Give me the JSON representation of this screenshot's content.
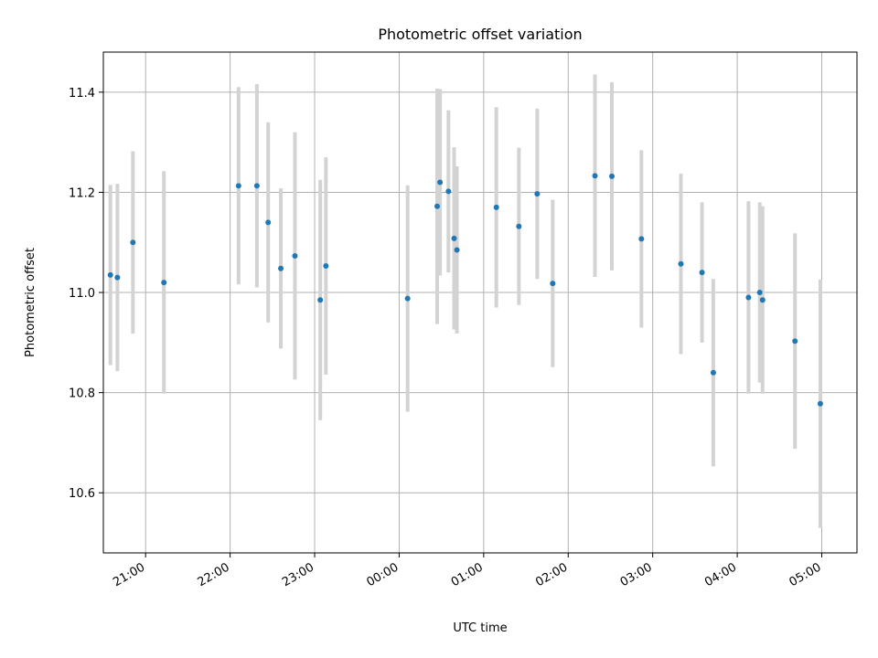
{
  "chart_data": {
    "type": "scatter",
    "title": "Photometric offset variation",
    "xlabel": "UTC time",
    "ylabel": "Photometric offset",
    "x_axis_type": "time",
    "x_tick_labels": [
      "21:00",
      "22:00",
      "23:00",
      "00:00",
      "01:00",
      "02:00",
      "03:00",
      "04:00",
      "05:00"
    ],
    "y_ticks": [
      "10.6",
      "10.8",
      "11.0",
      "11.2",
      "11.4"
    ],
    "ylim": [
      10.48,
      11.48
    ],
    "xlim": [
      "20:30",
      "05:25"
    ],
    "grid": true,
    "series": [
      {
        "color": "#1f77b4",
        "errorbar_color": "#d3d3d3",
        "points": [
          {
            "x": "20:35",
            "y": 11.035,
            "yerr": 0.18
          },
          {
            "x": "20:40",
            "y": 11.03,
            "yerr": 0.187
          },
          {
            "x": "20:51",
            "y": 11.1,
            "yerr": 0.182
          },
          {
            "x": "21:13",
            "y": 11.02,
            "yerr": 0.222
          },
          {
            "x": "22:06",
            "y": 11.213,
            "yerr": 0.197
          },
          {
            "x": "22:19",
            "y": 11.213,
            "yerr": 0.203
          },
          {
            "x": "22:27",
            "y": 11.14,
            "yerr": 0.2
          },
          {
            "x": "22:36",
            "y": 11.048,
            "yerr": 0.16
          },
          {
            "x": "22:46",
            "y": 11.073,
            "yerr": 0.247
          },
          {
            "x": "23:04",
            "y": 10.985,
            "yerr": 0.24
          },
          {
            "x": "23:08",
            "y": 11.053,
            "yerr": 0.217
          },
          {
            "x": "00:06",
            "y": 10.988,
            "yerr": 0.226
          },
          {
            "x": "00:27",
            "y": 11.172,
            "yerr": 0.235
          },
          {
            "x": "00:29",
            "y": 11.22,
            "yerr": 0.186
          },
          {
            "x": "00:35",
            "y": 11.202,
            "yerr": 0.162
          },
          {
            "x": "00:39",
            "y": 11.108,
            "yerr": 0.182
          },
          {
            "x": "00:41",
            "y": 11.085,
            "yerr": 0.167
          },
          {
            "x": "01:09",
            "y": 11.17,
            "yerr": 0.2
          },
          {
            "x": "01:25",
            "y": 11.132,
            "yerr": 0.157
          },
          {
            "x": "01:38",
            "y": 11.197,
            "yerr": 0.17
          },
          {
            "x": "01:49",
            "y": 11.018,
            "yerr": 0.167
          },
          {
            "x": "02:19",
            "y": 11.233,
            "yerr": 0.202
          },
          {
            "x": "02:31",
            "y": 11.232,
            "yerr": 0.188
          },
          {
            "x": "02:52",
            "y": 11.107,
            "yerr": 0.177
          },
          {
            "x": "03:20",
            "y": 11.057,
            "yerr": 0.18
          },
          {
            "x": "03:35",
            "y": 11.04,
            "yerr": 0.14
          },
          {
            "x": "03:43",
            "y": 10.84,
            "yerr": 0.187
          },
          {
            "x": "04:08",
            "y": 10.99,
            "yerr": 0.192
          },
          {
            "x": "04:16",
            "y": 11.0,
            "yerr": 0.18
          },
          {
            "x": "04:18",
            "y": 10.985,
            "yerr": 0.187
          },
          {
            "x": "04:41",
            "y": 10.903,
            "yerr": 0.215
          },
          {
            "x": "04:59",
            "y": 10.778,
            "yerr": 0.248
          }
        ]
      }
    ]
  }
}
